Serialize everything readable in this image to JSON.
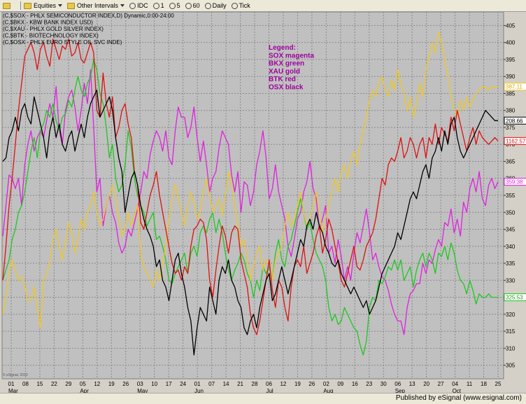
{
  "toolbar": {
    "items": [
      "Equities",
      "Other Intervals",
      "IDC",
      "1",
      "5",
      "60",
      "Daily",
      "Tick"
    ]
  },
  "footer": {
    "published": "Published by eSignal (www.esignal.com)"
  },
  "chart_data": {
    "type": "line",
    "header_lines": [
      "(C,$SOX - PHLX SEMICONDUCTOR INDEX,D) Dynamic,0:00-24:00",
      "(C,$BKX - KBW BANK INDEX USD)",
      "(C,$XAU - PHLX GOLD SILVER INDEX)",
      "(C,$BTK - BIOTECHNOLOGY INDEX)",
      "(C,$OSX - PHLX EURO STYLE OIL SVC INDE)"
    ],
    "legend": [
      "Legend:",
      "SOX magenta",
      "BKX green",
      "XAU gold",
      "BTK red",
      "OSX black"
    ],
    "watermark": "© eSignal, 2010",
    "ylim": [
      301,
      409
    ],
    "y_ticks": [
      305,
      310,
      315,
      320,
      325,
      330,
      335,
      340,
      345,
      350,
      355,
      360,
      365,
      370,
      375,
      380,
      385,
      390,
      395,
      400,
      405
    ],
    "x_ticks": [
      "01",
      "08",
      "15",
      "22",
      "29",
      "05",
      "12",
      "19",
      "26",
      "03",
      "10",
      "17",
      "24",
      "01",
      "07",
      "14",
      "21",
      "28",
      "06",
      "12",
      "19",
      "26",
      "02",
      "09",
      "16",
      "23",
      "30",
      "06",
      "13",
      "20",
      "27",
      "04",
      "11",
      "18",
      "25"
    ],
    "months": [
      {
        "label": "Mar",
        "index": 0
      },
      {
        "label": "Apr",
        "index": 5
      },
      {
        "label": "May",
        "index": 9
      },
      {
        "label": "Jun",
        "index": 13
      },
      {
        "label": "Jul",
        "index": 18
      },
      {
        "label": "Aug",
        "index": 22
      },
      {
        "label": "Sep",
        "index": 27
      },
      {
        "label": "Oct",
        "index": 31
      }
    ],
    "series": [
      {
        "color": "#e020e0",
        "last_label": "359.38",
        "values": [
          343,
          352,
          361,
          360,
          357,
          360,
          352,
          364,
          370,
          374,
          368,
          372,
          374,
          372,
          377,
          382,
          378,
          387,
          374,
          370,
          380,
          384,
          386,
          381,
          374,
          380,
          388,
          382,
          392,
          375,
          356,
          360,
          346,
          352,
          355,
          350,
          347,
          341,
          338,
          340,
          345,
          343,
          347,
          351,
          356,
          362,
          360,
          367,
          371,
          374,
          372,
          368,
          374,
          366,
          364,
          374,
          381,
          378,
          378,
          372,
          375,
          381,
          372,
          365,
          371,
          364,
          356,
          360,
          362,
          369,
          374,
          372,
          370,
          361,
          356,
          362,
          350,
          359,
          358,
          352,
          356,
          364,
          368,
          374,
          366,
          354,
          357,
          364,
          356,
          352,
          348,
          340,
          337,
          342,
          348,
          350,
          356,
          359,
          365,
          357,
          354,
          345,
          348,
          352,
          338,
          340,
          335,
          342,
          337,
          330,
          334,
          330,
          338,
          344,
          341,
          346,
          351,
          344,
          336,
          338,
          334,
          331,
          330,
          327,
          323,
          320,
          318,
          318,
          314,
          322,
          326,
          327,
          329,
          329,
          335,
          332,
          336,
          335,
          339,
          342,
          340,
          347,
          346,
          351,
          344,
          348,
          343,
          353,
          350,
          357,
          360,
          356,
          362,
          354,
          352,
          358,
          360,
          357,
          359
        ]
      },
      {
        "color": "#1ec81e",
        "last_label": "325.53",
        "values": [
          330,
          333,
          336,
          342,
          345,
          350,
          352,
          356,
          362,
          368,
          372,
          366,
          374,
          376,
          380,
          378,
          382,
          377,
          374,
          378,
          379,
          383,
          381,
          386,
          390,
          386,
          384,
          388,
          390,
          395,
          392,
          385,
          382,
          375,
          366,
          370,
          360,
          356,
          358,
          364,
          374,
          369,
          360,
          355,
          352,
          350,
          346,
          348,
          350,
          342,
          343,
          340,
          336,
          330,
          329,
          332,
          334,
          336,
          338,
          332,
          338,
          340,
          337,
          344,
          346,
          344,
          348,
          350,
          344,
          348,
          344,
          338,
          333,
          330,
          333,
          335,
          338,
          336,
          332,
          330,
          325,
          330,
          327,
          334,
          332,
          334,
          330,
          338,
          342,
          336,
          334,
          340,
          342,
          346,
          350,
          354,
          350,
          345,
          347,
          342,
          338,
          336,
          334,
          330,
          322,
          318,
          320,
          317,
          318,
          322,
          320,
          318,
          316,
          315,
          311,
          308,
          312,
          322,
          325,
          324,
          330,
          329,
          331,
          334,
          333,
          336,
          333,
          336,
          330,
          332,
          334,
          328,
          333,
          336,
          338,
          334,
          338,
          336,
          332,
          338,
          337,
          340,
          336,
          341,
          338,
          333,
          330,
          329,
          326,
          330,
          327,
          323,
          326,
          325,
          325,
          326,
          325,
          325,
          325
        ]
      },
      {
        "color": "#f0c820",
        "last_label": "387.11",
        "values": [
          320,
          325,
          332,
          336,
          333,
          330,
          331,
          328,
          324,
          324,
          328,
          322,
          316,
          330,
          332,
          335,
          342,
          345,
          340,
          336,
          341,
          347,
          344,
          338,
          342,
          348,
          345,
          350,
          352,
          356,
          350,
          346,
          348,
          352,
          355,
          358,
          354,
          348,
          343,
          345,
          350,
          346,
          349,
          352,
          338,
          334,
          332,
          330,
          328,
          333,
          330,
          335,
          340,
          348,
          354,
          358,
          354,
          350,
          346,
          352,
          356,
          353,
          348,
          350,
          356,
          360,
          355,
          350,
          352,
          354,
          349,
          355,
          362,
          358,
          352,
          346,
          340,
          342,
          336,
          330,
          334,
          338,
          340,
          333,
          336,
          335,
          330,
          336,
          338,
          340,
          346,
          350,
          346,
          348,
          352,
          356,
          350,
          346,
          348,
          352,
          356,
          350,
          344,
          348,
          352,
          356,
          360,
          356,
          362,
          364,
          360,
          365,
          368,
          364,
          370,
          374,
          378,
          383,
          386,
          384,
          388,
          390,
          386,
          384,
          389,
          386,
          392,
          388,
          385,
          380,
          384,
          378,
          382,
          388,
          384,
          392,
          396,
          400,
          397,
          403,
          400,
          395,
          390,
          384,
          380,
          378,
          383,
          380,
          384,
          381,
          383,
          385,
          386,
          387,
          387,
          386,
          387,
          387,
          387
        ]
      },
      {
        "color": "#e01010",
        "last_label": "1162.57",
        "values": [
          330,
          340,
          352,
          360,
          370,
          380,
          388,
          396,
          398,
          400,
          397,
          392,
          398,
          400,
          396,
          393,
          401,
          398,
          395,
          399,
          398,
          401,
          396,
          397,
          400,
          395,
          394,
          397,
          400,
          397,
          380,
          378,
          391,
          382,
          378,
          384,
          372,
          375,
          380,
          382,
          376,
          372,
          362,
          358,
          347,
          345,
          350,
          355,
          358,
          362,
          355,
          350,
          345,
          340,
          335,
          332,
          333,
          330,
          334,
          332,
          340,
          345,
          346,
          348,
          347,
          342,
          330,
          325,
          333,
          340,
          346,
          343,
          338,
          344,
          346,
          345,
          336,
          332,
          328,
          320,
          316,
          314,
          318,
          324,
          330,
          336,
          327,
          322,
          330,
          328,
          322,
          318,
          328,
          334,
          336,
          334,
          340,
          332,
          335,
          338,
          343,
          346,
          338,
          342,
          348,
          345,
          340,
          335,
          330,
          328,
          332,
          336,
          340,
          334,
          333,
          336,
          340,
          342,
          344,
          348,
          354,
          360,
          358,
          364,
          366,
          365,
          368,
          372,
          366,
          368,
          372,
          370,
          366,
          370,
          372,
          366,
          372,
          370,
          376,
          370,
          375,
          373,
          371,
          378,
          374,
          380,
          376,
          372,
          368,
          372,
          375,
          370,
          374,
          372,
          371,
          370,
          371,
          372,
          371
        ]
      },
      {
        "color": "#000000",
        "last_label": "208.66",
        "values": [
          365,
          366,
          372,
          374,
          378,
          374,
          380,
          382,
          378,
          376,
          384,
          380,
          376,
          372,
          366,
          374,
          378,
          372,
          376,
          370,
          368,
          372,
          374,
          368,
          372,
          376,
          372,
          378,
          382,
          384,
          386,
          378,
          380,
          382,
          384,
          380,
          372,
          366,
          362,
          350,
          355,
          360,
          362,
          358,
          352,
          348,
          345,
          343,
          340,
          334,
          336,
          330,
          328,
          324,
          330,
          336,
          338,
          332,
          328,
          322,
          318,
          308,
          316,
          322,
          320,
          318,
          328,
          324,
          320,
          330,
          334,
          332,
          336,
          330,
          328,
          324,
          322,
          316,
          314,
          318,
          320,
          316,
          322,
          326,
          330,
          332,
          324,
          326,
          330,
          334,
          330,
          326,
          330,
          334,
          338,
          342,
          340,
          346,
          348,
          345,
          350,
          346,
          344,
          340,
          338,
          335,
          334,
          336,
          332,
          330,
          328,
          326,
          328,
          326,
          324,
          322,
          324,
          320,
          322,
          324,
          328,
          332,
          334,
          336,
          338,
          340,
          344,
          342,
          346,
          350,
          354,
          356,
          354,
          358,
          362,
          364,
          360,
          366,
          368,
          372,
          368,
          374,
          370,
          376,
          378,
          372,
          368,
          366,
          368,
          370,
          372,
          374,
          376,
          378,
          380,
          379,
          378,
          377,
          377
        ]
      }
    ]
  }
}
